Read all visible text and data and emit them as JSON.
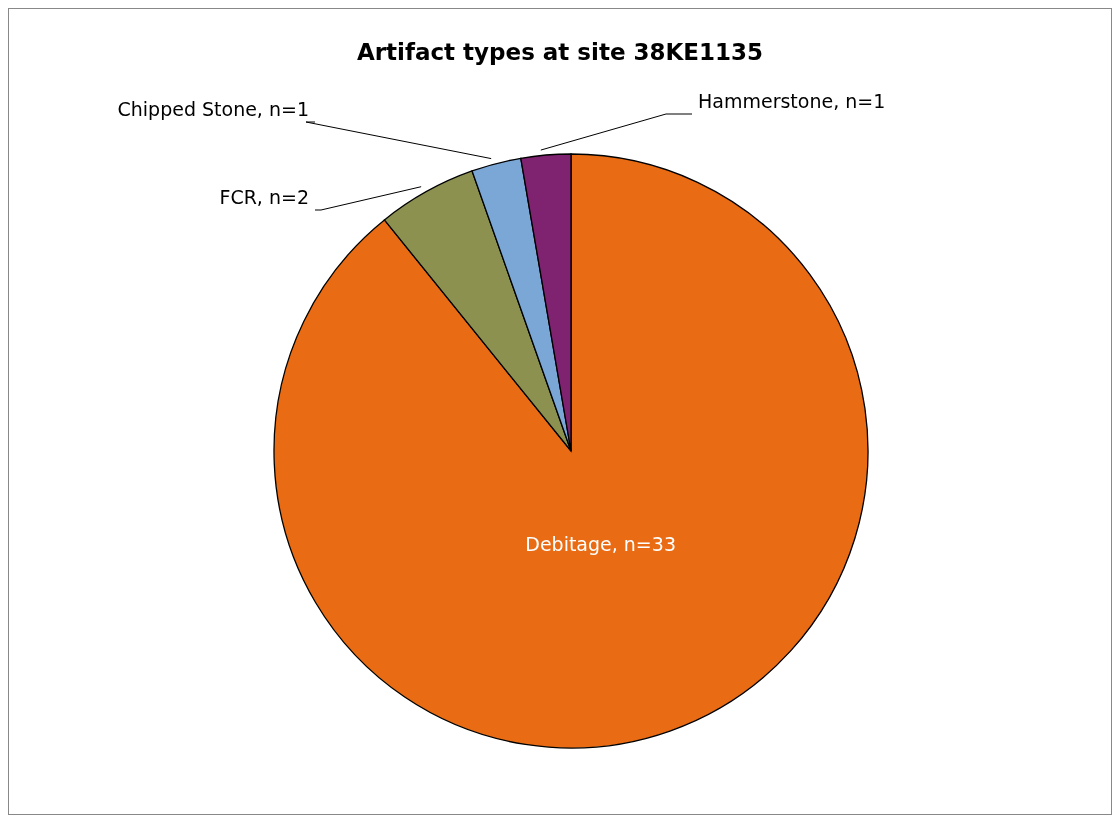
{
  "chart_data": {
    "type": "pie",
    "title": "Artifact types at site 38KE1135",
    "categories": [
      "Debitage",
      "FCR",
      "Chipped Stone",
      "Hammerstone"
    ],
    "values": [
      33,
      2,
      1,
      1
    ],
    "value_labels": [
      "n=33",
      "n=2",
      "n=1",
      "n=1"
    ],
    "colors": [
      "#e96c14",
      "#8c9150",
      "#7aa7d6",
      "#7f2270"
    ],
    "legend": false
  }
}
